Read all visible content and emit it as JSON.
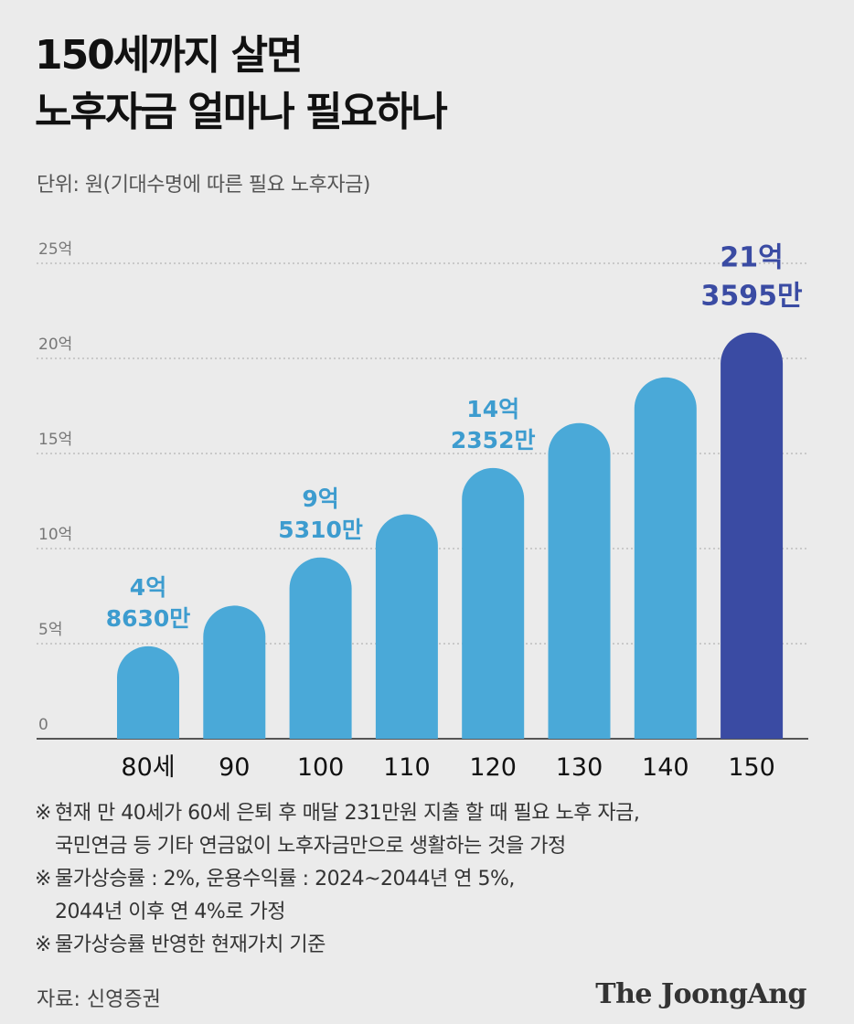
{
  "title": {
    "line1": "150세까지 살면",
    "line2": "노후자금 얼마나 필요하나"
  },
  "unit_text": "단위: 원(기대수명에 따른 필요 노후자금)",
  "chart_data": {
    "type": "bar",
    "title": "150세까지 살면 노후자금 얼마나 필요하나",
    "xlabel": "",
    "ylabel": "단위: 원(기대수명에 따른 필요 노후자금)",
    "ylim": [
      0,
      25
    ],
    "yunit": "억",
    "y_ticks": [
      0,
      5,
      10,
      15,
      20,
      25
    ],
    "y_tick_labels": [
      "0",
      "5억",
      "10억",
      "15억",
      "20억",
      "25억"
    ],
    "categories": [
      "80세",
      "90",
      "100",
      "110",
      "120",
      "130",
      "140",
      "150"
    ],
    "values": [
      4.863,
      7.0,
      9.531,
      11.8,
      14.2352,
      16.6,
      19.0,
      21.3595
    ],
    "bar_colors": [
      "#4aa9d8",
      "#4aa9d8",
      "#4aa9d8",
      "#4aa9d8",
      "#4aa9d8",
      "#4aa9d8",
      "#4aa9d8",
      "#3a4ba3"
    ],
    "data_labels": [
      {
        "index": 0,
        "line1": "4억",
        "line2": "8630만",
        "color": "#3d9ccf"
      },
      {
        "index": 2,
        "line1": "9억",
        "line2": "5310만",
        "color": "#3d9ccf"
      },
      {
        "index": 4,
        "line1": "14억",
        "line2": "2352만",
        "color": "#3d9ccf"
      },
      {
        "index": 7,
        "line1": "21억",
        "line2": "3595만",
        "color": "#3a4ba3"
      }
    ],
    "grid": true,
    "legend": "none"
  },
  "notes": [
    {
      "mark": "※",
      "lines": [
        "현재 만 40세가 60세 은퇴 후 매달 231만원 지출 할 때 필요 노후 자금,",
        "국민연금 등 기타 연금없이 노후자금만으로 생활하는 것을 가정"
      ]
    },
    {
      "mark": "※",
      "lines": [
        "물가상승률 : 2%, 운용수익률 : 2024~2044년 연 5%,",
        "2044년 이후 연 4%로 가정"
      ]
    },
    {
      "mark": "※",
      "lines": [
        "물가상승률 반영한 현재가치 기준"
      ]
    }
  ],
  "source": "자료: 신영증권",
  "brand": "The JoongAng"
}
